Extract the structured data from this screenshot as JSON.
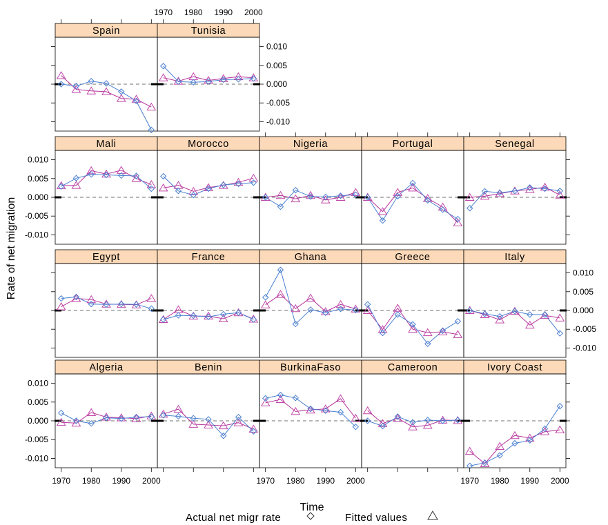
{
  "chart_data": {
    "type": "line",
    "xlabel": "Time",
    "ylabel": "Rate of net migration",
    "x": [
      1970,
      1975,
      1980,
      1985,
      1990,
      1995,
      2000
    ],
    "xlim": [
      1968,
      2002
    ],
    "ylim": [
      -0.0125,
      0.0125
    ],
    "x_ticks": [
      1970,
      1980,
      1990,
      2000
    ],
    "x_tick_labels": [
      "1970",
      "1980",
      "1990",
      "2000"
    ],
    "y_ticks": [
      0.01,
      0.005,
      0,
      -0.005,
      -0.01
    ],
    "y_tick_labels": [
      "0.010",
      "0.005",
      "0.000",
      "-0.005",
      "-0.010"
    ],
    "reference_line": 0,
    "grid": false,
    "legend": {
      "placement": "bottom",
      "entries": [
        {
          "label": "Actual net migr rate",
          "marker": "diamond",
          "color": "#4a7fd0"
        },
        {
          "label": "Fitted values",
          "marker": "triangle",
          "color": "#c046a8"
        }
      ]
    },
    "panels": [
      {
        "country": "Spain",
        "row": 0,
        "col": 0,
        "actual": [
          0.0,
          -0.0005,
          0.0008,
          0.0002,
          -0.002,
          -0.0045,
          -0.0122
        ],
        "fitted": [
          0.0023,
          -0.0014,
          -0.0018,
          -0.002,
          -0.0038,
          -0.004,
          -0.0061
        ]
      },
      {
        "country": "Tunisia",
        "row": 0,
        "col": 1,
        "actual": [
          0.0048,
          0.0007,
          0.0005,
          0.0007,
          0.0012,
          0.0013,
          0.0015
        ],
        "fitted": [
          0.0017,
          0.0008,
          0.002,
          0.001,
          0.0015,
          0.002,
          0.0017
        ]
      },
      {
        "country": "Mali",
        "row": 1,
        "col": 0,
        "actual": [
          0.0029,
          0.0051,
          0.0061,
          0.006,
          0.0058,
          0.0057,
          0.0023
        ],
        "fitted": [
          0.0031,
          0.0032,
          0.0071,
          0.0062,
          0.0072,
          0.005,
          0.0034
        ]
      },
      {
        "country": "Morocco",
        "row": 1,
        "col": 1,
        "actual": [
          0.0056,
          0.0017,
          0.0006,
          0.0023,
          0.0033,
          0.0036,
          0.0039
        ],
        "fitted": [
          0.0025,
          0.0032,
          0.0016,
          0.0026,
          0.0032,
          0.004,
          0.0051
        ]
      },
      {
        "country": "Nigeria",
        "row": 1,
        "col": 2,
        "actual": [
          0.0,
          -0.0025,
          0.0019,
          0.0002,
          0.0001,
          0.0004,
          0.0007
        ],
        "fitted": [
          0.0,
          0.0005,
          -0.0004,
          0.0005,
          -0.0007,
          0.0,
          0.0013
        ]
      },
      {
        "country": "Portugal",
        "row": 1,
        "col": 3,
        "actual": [
          0.0,
          -0.0062,
          0.0003,
          0.0038,
          -0.0008,
          -0.0033,
          -0.0058
        ],
        "fitted": [
          0.0,
          -0.0038,
          0.0013,
          0.0025,
          -0.0003,
          -0.0026,
          -0.0068
        ]
      },
      {
        "country": "Senegal",
        "row": 1,
        "col": 4,
        "actual": [
          -0.0029,
          0.0016,
          0.0012,
          0.0017,
          0.0026,
          0.0023,
          0.0017
        ],
        "fitted": [
          0.0,
          0.0003,
          0.001,
          0.0017,
          0.0021,
          0.0027,
          0.0006
        ]
      },
      {
        "country": "Egypt",
        "row": 2,
        "col": 0,
        "actual": [
          0.0032,
          0.0036,
          0.0017,
          0.0016,
          0.0017,
          0.0016,
          0.0005
        ],
        "fitted": [
          0.001,
          0.0032,
          0.0029,
          0.0017,
          0.0016,
          0.0015,
          0.0032
        ]
      },
      {
        "country": "France",
        "row": 2,
        "col": 1,
        "actual": [
          -0.0024,
          -0.0013,
          -0.0014,
          -0.0017,
          -0.001,
          -0.0006,
          -0.0024
        ],
        "fitted": [
          -0.0024,
          0.0002,
          -0.0015,
          -0.0015,
          -0.0022,
          -0.0006,
          -0.0023
        ]
      },
      {
        "country": "Ghana",
        "row": 2,
        "col": 2,
        "actual": [
          0.0035,
          0.0108,
          -0.0036,
          0.0002,
          -0.0006,
          0.0004,
          0.0001
        ],
        "fitted": [
          0.0015,
          0.0043,
          0.0005,
          0.0033,
          -0.0003,
          0.0016,
          0.0004
        ]
      },
      {
        "country": "Greece",
        "row": 2,
        "col": 3,
        "actual": [
          0.0016,
          -0.006,
          -0.0011,
          -0.0037,
          -0.0089,
          -0.0054,
          -0.0029
        ],
        "fitted": [
          0.0,
          -0.0051,
          0.0006,
          -0.005,
          -0.0059,
          -0.0057,
          -0.0064
        ]
      },
      {
        "country": "Italy",
        "row": 2,
        "col": 4,
        "actual": [
          0.0,
          -0.0009,
          -0.0016,
          -0.0002,
          -0.0011,
          -0.0011,
          -0.0061
        ],
        "fitted": [
          0.0,
          -0.0011,
          -0.0025,
          -0.0002,
          -0.0039,
          -0.0013,
          -0.002
        ]
      },
      {
        "country": "Algeria",
        "row": 3,
        "col": 0,
        "actual": [
          0.0021,
          0.0,
          -0.0007,
          0.0008,
          0.0006,
          0.001,
          0.0011
        ],
        "fitted": [
          -0.0004,
          -0.0006,
          0.0022,
          0.001,
          0.0008,
          0.0006,
          0.0013
        ]
      },
      {
        "country": "Benin",
        "row": 3,
        "col": 1,
        "actual": [
          0.0015,
          0.0012,
          0.0007,
          0.0004,
          -0.004,
          0.001,
          -0.0028
        ],
        "fitted": [
          0.0018,
          0.0031,
          -0.0009,
          -0.0011,
          -0.0013,
          -0.0005,
          -0.0022
        ]
      },
      {
        "country": "BurkinaFaso",
        "row": 3,
        "col": 2,
        "actual": [
          0.006,
          0.0069,
          0.0061,
          0.0032,
          0.0027,
          0.0023,
          -0.0016
        ],
        "fitted": [
          0.0048,
          0.0057,
          0.0025,
          0.0029,
          0.0032,
          0.0059,
          0.0007
        ]
      },
      {
        "country": "Cameroon",
        "row": 3,
        "col": 3,
        "actual": [
          0.0,
          -0.0014,
          0.0011,
          -0.0004,
          0.0002,
          0.0,
          0.0002
        ],
        "fitted": [
          0.0027,
          -0.0007,
          0.0007,
          -0.0016,
          -0.0012,
          0.0002,
          0.0001
        ]
      },
      {
        "country": "Ivory Coast",
        "row": 3,
        "col": 4,
        "actual": [
          -0.012,
          -0.0112,
          -0.0092,
          -0.006,
          -0.0052,
          -0.0021,
          0.0039
        ],
        "fitted": [
          -0.0081,
          -0.0114,
          -0.0068,
          -0.0039,
          -0.0046,
          -0.0029,
          -0.0024
        ]
      }
    ]
  }
}
